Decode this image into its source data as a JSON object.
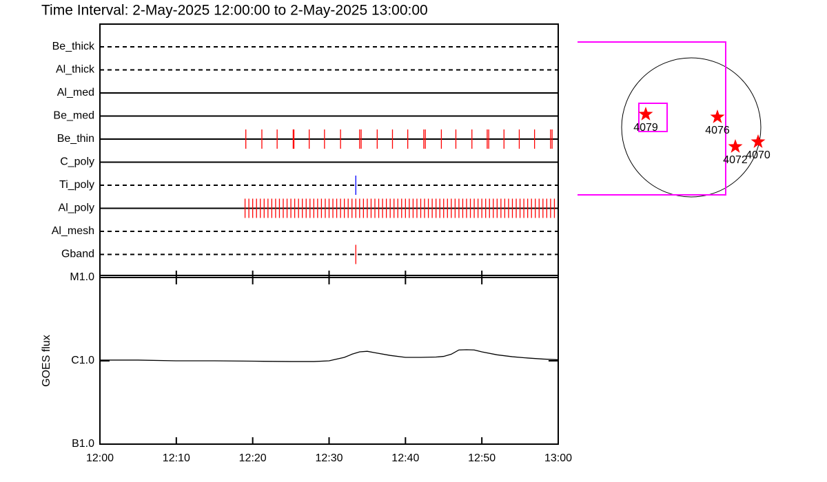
{
  "title": "Time Interval:  2-May-2025 12:00:00 to  2-May-2025 13:00:00",
  "chart_data": [
    {
      "type": "timeline",
      "xlim": [
        0,
        60
      ],
      "series": [
        {
          "name": "Be_thick",
          "line_style": "dashed",
          "color": "#ff0000",
          "values": []
        },
        {
          "name": "Al_thick",
          "line_style": "dashed",
          "color": "#ff0000",
          "values": []
        },
        {
          "name": "Al_med",
          "line_style": "solid",
          "color": "#ff0000",
          "values": []
        },
        {
          "name": "Be_med",
          "line_style": "solid",
          "color": "#ff0000",
          "values": []
        },
        {
          "name": "Be_thin",
          "line_style": "solid",
          "color": "#ff0000",
          "values": [
            19.1,
            21.2,
            23.2,
            25.3,
            25.4,
            27.4,
            29.4,
            31.5,
            34.0,
            34.2,
            36.3,
            38.3,
            40.3,
            42.4,
            42.6,
            44.7,
            46.6,
            48.7,
            50.7,
            50.9,
            52.9,
            54.9,
            56.9,
            59.0,
            59.2
          ]
        },
        {
          "name": "C_poly",
          "line_style": "solid",
          "color": "#ff0000",
          "values": []
        },
        {
          "name": "Ti_poly",
          "line_style": "dashed",
          "color": "#0000ff",
          "values": [
            33.5
          ]
        },
        {
          "name": "Al_poly",
          "line_style": "solid",
          "color": "#ff0000",
          "values": [
            19,
            19.5,
            20,
            20.5,
            21,
            21.5,
            22,
            22.5,
            23,
            23.5,
            24,
            24.5,
            25,
            25.5,
            26,
            26.5,
            27,
            27.5,
            28,
            28.5,
            29,
            29.5,
            30,
            30.5,
            31,
            31.5,
            32,
            32.5,
            33,
            33.5,
            34,
            34.5,
            35,
            35.5,
            36,
            36.5,
            37,
            37.5,
            38,
            38.5,
            39,
            39.5,
            40,
            40.5,
            41,
            41.5,
            42,
            42.5,
            43,
            43.5,
            44,
            44.5,
            45,
            45.5,
            46,
            46.5,
            47,
            47.5,
            48,
            48.5,
            49,
            49.5,
            50,
            50.5,
            51,
            51.5,
            52,
            52.5,
            53,
            53.5,
            54,
            54.5,
            55,
            55.5,
            56,
            56.5,
            57,
            57.5,
            58,
            58.5,
            59,
            59.5
          ]
        },
        {
          "name": "Al_mesh",
          "line_style": "dashed",
          "color": "#ff0000",
          "values": []
        },
        {
          "name": "Gband",
          "line_style": "dashed",
          "color": "#ff0000",
          "values": [
            33.5
          ]
        }
      ]
    },
    {
      "type": "line",
      "ylabel": "GOES flux",
      "log_scale": true,
      "color": "#000000",
      "xlim": [
        0,
        60
      ],
      "xticks": [
        {
          "value": 0,
          "label": "12:00"
        },
        {
          "value": 10,
          "label": "12:10"
        },
        {
          "value": 20,
          "label": "12:20"
        },
        {
          "value": 30,
          "label": "12:30"
        },
        {
          "value": 40,
          "label": "12:40"
        },
        {
          "value": 50,
          "label": "12:50"
        },
        {
          "value": 60,
          "label": "13:00"
        }
      ],
      "ylim": [
        1e-07,
        1e-05
      ],
      "yticks": [
        {
          "value": 1e-05,
          "label": "M1.0"
        },
        {
          "value": 1e-06,
          "label": "C1.0"
        },
        {
          "value": 1e-07,
          "label": "B1.0"
        }
      ],
      "x": [
        0,
        5,
        10,
        15,
        20,
        25,
        28,
        30,
        32,
        33,
        34,
        35,
        36,
        38,
        40,
        42,
        44,
        45,
        46,
        47,
        48,
        49,
        50,
        52,
        54,
        56,
        58,
        60
      ],
      "values": [
        1.02e-06,
        1.02e-06,
        1e-06,
        1e-06,
        9.9e-07,
        9.8e-07,
        9.8e-07,
        1e-06,
        1.1e-06,
        1.2e-06,
        1.28e-06,
        1.3e-06,
        1.25e-06,
        1.16e-06,
        1.1e-06,
        1.1e-06,
        1.11e-06,
        1.13e-06,
        1.2e-06,
        1.35e-06,
        1.36e-06,
        1.35e-06,
        1.28e-06,
        1.18e-06,
        1.12e-06,
        1.08e-06,
        1.05e-06,
        1.03e-06
      ]
    }
  ],
  "map": {
    "regions": [
      "4079",
      "4076",
      "4072",
      "4070"
    ]
  }
}
